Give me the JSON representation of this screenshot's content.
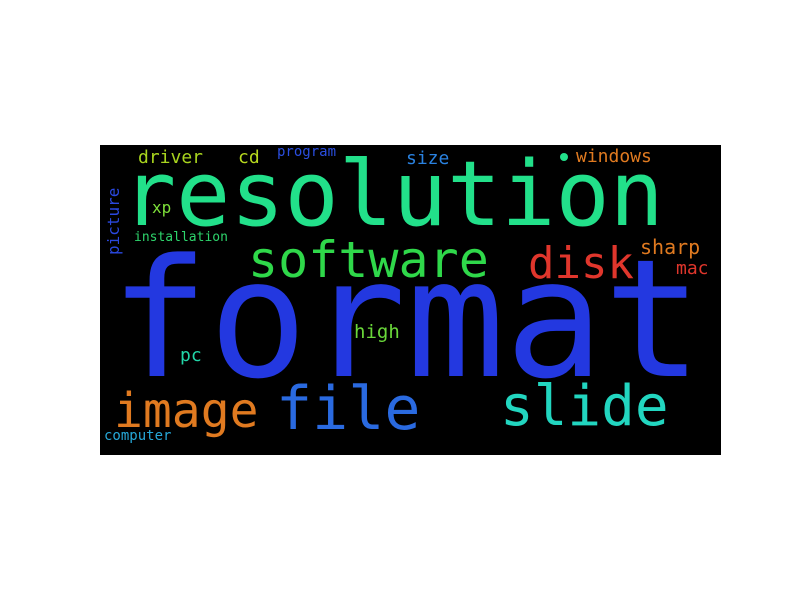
{
  "background": "#000000",
  "words": [
    {
      "text": "format",
      "color": "#2338e0"
    },
    {
      "text": "resolution",
      "color": "#22e08a"
    },
    {
      "text": "software",
      "color": "#2fd84a"
    },
    {
      "text": "disk",
      "color": "#e0362c"
    },
    {
      "text": "image",
      "color": "#e07a20"
    },
    {
      "text": "file",
      "color": "#2a6ae0"
    },
    {
      "text": "slide",
      "color": "#22d6c0"
    },
    {
      "text": "driver",
      "color": "#a8d41e"
    },
    {
      "text": "cd",
      "color": "#b6d81e"
    },
    {
      "text": "program",
      "color": "#2a4ee0"
    },
    {
      "text": "size",
      "color": "#2a82e0"
    },
    {
      "text": "windows",
      "color": "#e07a20"
    },
    {
      "text": "xp",
      "color": "#7ee03a"
    },
    {
      "text": "installation",
      "color": "#2ed46c"
    },
    {
      "text": "picture",
      "color": "#2a48e0"
    },
    {
      "text": "sharp",
      "color": "#e07a20"
    },
    {
      "text": "mac",
      "color": "#e0362c"
    },
    {
      "text": "high",
      "color": "#6ad83a"
    },
    {
      "text": "pc",
      "color": "#22d6a8"
    },
    {
      "text": "computer",
      "color": "#26a8d8"
    }
  ],
  "dot_color": "#22e08a"
}
